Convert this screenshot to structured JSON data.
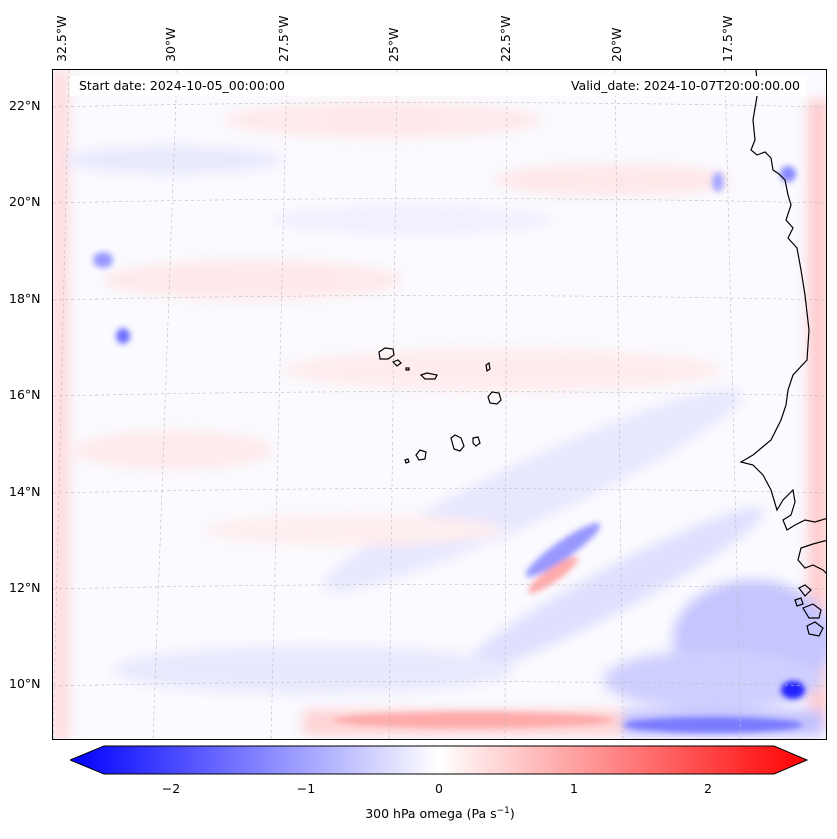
{
  "header": {
    "start_date": "Start date: 2024-10-05_00:00:00",
    "valid_date": "Valid_date: 2024-10-07T20:00:00.00"
  },
  "map": {
    "lat_labels": [
      "22°N",
      "20°N",
      "18°N",
      "16°N",
      "14°N",
      "12°N",
      "10°N"
    ],
    "lon_labels": [
      "32.5°W",
      "30°W",
      "27.5°W",
      "25°W",
      "22.5°W",
      "20°W",
      "17.5°W"
    ],
    "features": [
      "Cape Verde islands",
      "West African coastline"
    ],
    "gridlines": true
  },
  "colorbar": {
    "ticks": [
      "−2",
      "−1",
      "0",
      "1",
      "2"
    ],
    "label_main": "300 hPa omega (Pa s",
    "label_sup": "−1",
    "label_end": ")",
    "colormap": "bwr",
    "min_color": "#0000ff",
    "mid_color": "#ffffff",
    "max_color": "#ff0000",
    "range": [
      -2.6,
      2.6
    ],
    "extend": "both"
  }
}
